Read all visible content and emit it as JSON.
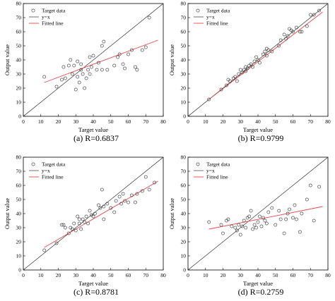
{
  "chart_data": [
    {
      "type": "scatter",
      "caption": "(a) R=0.6837",
      "xlabel": "Target value",
      "ylabel": "Output value",
      "xlim": [
        0,
        80
      ],
      "ylim": [
        0,
        80
      ],
      "xticks": [
        0,
        10,
        20,
        30,
        40,
        50,
        60,
        70,
        80
      ],
      "yticks": [
        0,
        10,
        20,
        30,
        40,
        50,
        60,
        70,
        80
      ],
      "legend": {
        "position": "top-left",
        "entries": [
          "Target data",
          "y=x",
          "Fitted line"
        ]
      },
      "fitted_line": {
        "x": [
          12,
          77
        ],
        "y": [
          24,
          54
        ]
      },
      "identity_line": {
        "x": [
          0,
          80
        ],
        "y": [
          0,
          80
        ]
      },
      "points": {
        "x": [
          12,
          19,
          22,
          23,
          24,
          26,
          27,
          28,
          29,
          30,
          31,
          31,
          32,
          33,
          33,
          34,
          35,
          36,
          37,
          38,
          38,
          39,
          40,
          42,
          43,
          45,
          45,
          46,
          48,
          52,
          54,
          55,
          57,
          58,
          60,
          62,
          64,
          65,
          68,
          70,
          72,
          75
        ],
        "y": [
          28,
          21,
          26,
          35,
          27,
          36,
          40,
          30,
          36,
          19,
          28,
          39,
          24,
          33,
          37,
          30,
          20,
          27,
          33,
          42,
          30,
          35,
          43,
          33,
          38,
          33,
          50,
          53,
          33,
          36,
          42,
          44,
          37,
          34,
          44,
          47,
          35,
          33,
          47,
          49,
          70,
          81
        ]
      }
    },
    {
      "type": "scatter",
      "caption": "(b) R=0.9799",
      "xlabel": "Target value",
      "ylabel": "Output value",
      "xlim": [
        0,
        80
      ],
      "ylim": [
        0,
        80
      ],
      "xticks": [
        0,
        10,
        20,
        30,
        40,
        50,
        60,
        70,
        80
      ],
      "yticks": [
        0,
        10,
        20,
        30,
        40,
        50,
        60,
        70,
        80
      ],
      "legend": {
        "position": "top-left",
        "entries": [
          "Target data",
          "y=x",
          "Fitted line"
        ]
      },
      "fitted_line": {
        "x": [
          12,
          77
        ],
        "y": [
          12,
          74
        ]
      },
      "identity_line": {
        "x": [
          0,
          80
        ],
        "y": [
          0,
          80
        ]
      },
      "points": {
        "x": [
          12,
          19,
          22,
          23,
          24,
          26,
          27,
          28,
          29,
          30,
          31,
          32,
          33,
          33,
          34,
          35,
          36,
          37,
          38,
          39,
          40,
          41,
          43,
          44,
          45,
          45,
          46,
          48,
          52,
          53,
          55,
          56,
          57,
          58,
          59,
          60,
          62,
          64,
          65,
          68,
          70,
          72,
          75
        ],
        "y": [
          12,
          19,
          22,
          26,
          25,
          27,
          28,
          25,
          30,
          33,
          31,
          33,
          35,
          32,
          34,
          36,
          37,
          35,
          39,
          42,
          40,
          38,
          44,
          46,
          43,
          48,
          47,
          46,
          50,
          54,
          58,
          55,
          57,
          62,
          61,
          60,
          63,
          60,
          60,
          64,
          72,
          72,
          75
        ]
      }
    },
    {
      "type": "scatter",
      "caption": "(c) R=0.8781",
      "xlabel": "Target value",
      "ylabel": "Output value",
      "xlim": [
        0,
        80
      ],
      "ylim": [
        0,
        80
      ],
      "xticks": [
        0,
        10,
        20,
        30,
        40,
        50,
        60,
        70,
        80
      ],
      "yticks": [
        0,
        10,
        20,
        30,
        40,
        50,
        60,
        70,
        80
      ],
      "legend": {
        "position": "top-left",
        "entries": [
          "Target data",
          "y=x",
          "Fitted line"
        ]
      },
      "fitted_line": {
        "x": [
          12,
          77
        ],
        "y": [
          16,
          63
        ]
      },
      "identity_line": {
        "x": [
          0,
          80
        ],
        "y": [
          0,
          80
        ]
      },
      "points": {
        "x": [
          12,
          19,
          22,
          23,
          24,
          26,
          27,
          28,
          29,
          30,
          31,
          32,
          32,
          33,
          34,
          35,
          36,
          37,
          38,
          39,
          40,
          41,
          43,
          44,
          45,
          46,
          46,
          48,
          50,
          52,
          53,
          55,
          56,
          57,
          58,
          60,
          62,
          64,
          65,
          68,
          70,
          72,
          75
        ],
        "y": [
          14,
          19,
          32,
          32,
          30,
          26,
          30,
          29,
          33,
          28,
          38,
          36,
          33,
          29,
          36,
          34,
          38,
          33,
          42,
          39,
          38,
          40,
          46,
          44,
          57,
          45,
          36,
          47,
          44,
          41,
          49,
          52,
          47,
          54,
          49,
          48,
          53,
          48,
          54,
          56,
          66,
          57,
          62
        ]
      }
    },
    {
      "type": "scatter",
      "caption": "(d) R=0.2759",
      "xlabel": "Target value",
      "ylabel": "Output value",
      "xlim": [
        0,
        80
      ],
      "ylim": [
        0,
        80
      ],
      "xticks": [
        0,
        10,
        20,
        30,
        40,
        50,
        60,
        70,
        80
      ],
      "yticks": [
        0,
        10,
        20,
        30,
        40,
        50,
        60,
        70,
        80
      ],
      "legend": {
        "position": "top-left",
        "entries": [
          "Target data",
          "y=x",
          "Fitted line"
        ]
      },
      "fitted_line": {
        "x": [
          12,
          77
        ],
        "y": [
          29,
          45
        ]
      },
      "identity_line": {
        "x": [
          0,
          80
        ],
        "y": [
          0,
          80
        ]
      },
      "points": {
        "x": [
          12,
          19,
          20,
          22,
          23,
          25,
          27,
          28,
          29,
          30,
          31,
          32,
          33,
          34,
          35,
          36,
          37,
          38,
          39,
          40,
          41,
          42,
          43,
          44,
          45,
          46,
          48,
          50,
          52,
          53,
          55,
          56,
          57,
          58,
          60,
          61,
          62,
          64,
          65,
          68,
          70,
          72,
          75
        ],
        "y": [
          34,
          32,
          26,
          35,
          36,
          31,
          30,
          28,
          32,
          25,
          31,
          35,
          30,
          37,
          38,
          42,
          29,
          32,
          30,
          34,
          38,
          31,
          37,
          35,
          33,
          41,
          44,
          32,
          42,
          36,
          26,
          36,
          40,
          43,
          37,
          46,
          36,
          27,
          40,
          50,
          60,
          35,
          59
        ]
      }
    }
  ]
}
